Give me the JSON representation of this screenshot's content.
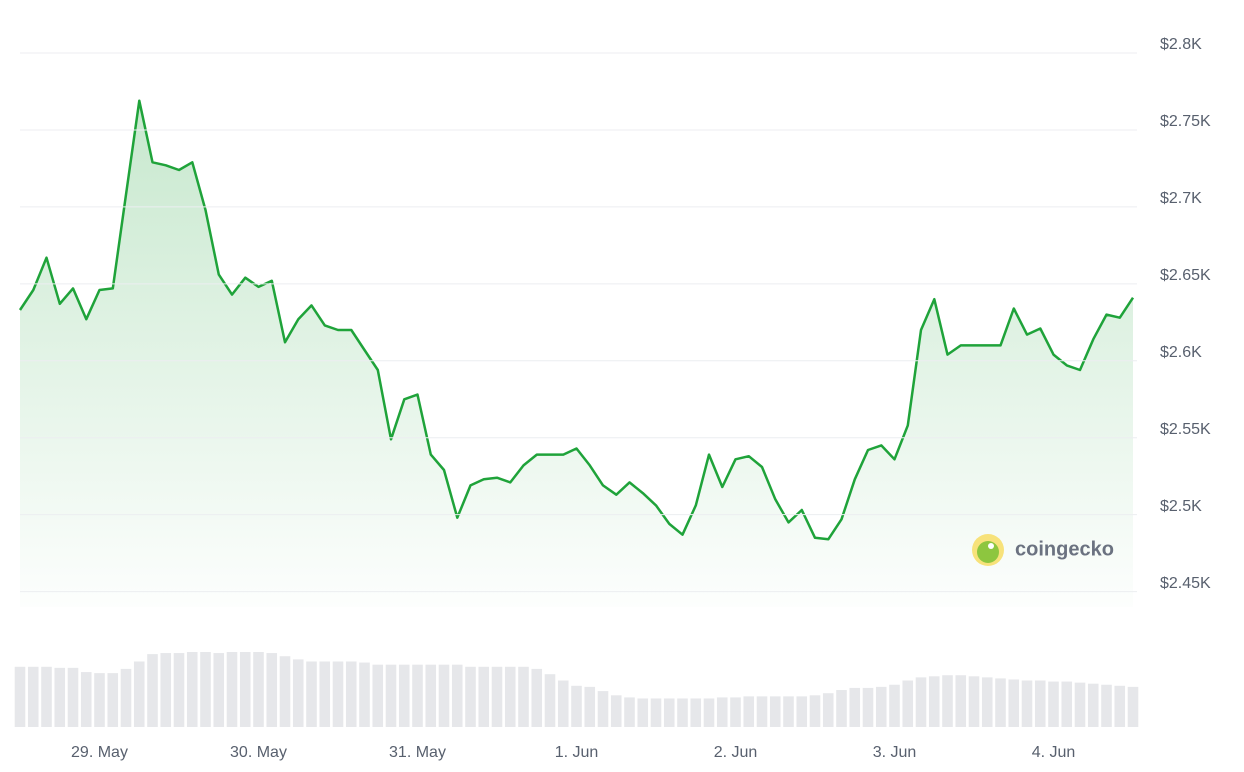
{
  "chart_data": {
    "type": "line",
    "color": "#1fa33a",
    "volume_color": "#e6e7ea",
    "watermark": "coingecko",
    "categories": [
      null,
      null,
      null,
      null,
      null,
      null,
      "29. May",
      null,
      null,
      null,
      null,
      null,
      null,
      null,
      null,
      null,
      null,
      null,
      "30. May",
      null,
      null,
      null,
      null,
      null,
      null,
      null,
      null,
      null,
      null,
      null,
      "31. May",
      null,
      null,
      null,
      null,
      null,
      null,
      null,
      null,
      null,
      null,
      null,
      "1. Jun",
      null,
      null,
      null,
      null,
      null,
      null,
      null,
      null,
      null,
      null,
      null,
      "2. Jun",
      null,
      null,
      null,
      null,
      null,
      null,
      null,
      null,
      null,
      null,
      null,
      "3. Jun",
      null,
      null,
      null,
      null,
      null,
      null,
      null,
      null,
      null,
      null,
      null,
      "4. Jun",
      null,
      null,
      null,
      null,
      null,
      null
    ],
    "values": [
      2633,
      2646,
      2667,
      2637,
      2647,
      2627,
      2646,
      2647,
      2708,
      2769,
      2729,
      2727,
      2724,
      2729,
      2698,
      2656,
      2643,
      2654,
      2648,
      2652,
      2612,
      2627,
      2636,
      2623,
      2620,
      2620,
      2607,
      2594,
      2549,
      2575,
      2578,
      2539,
      2529,
      2498,
      2519,
      2523,
      2524,
      2521,
      2532,
      2539,
      2539,
      2539,
      2543,
      2532,
      2519,
      2513,
      2521,
      2514,
      2506,
      2494,
      2487,
      2506,
      2539,
      2518,
      2536,
      2538,
      2531,
      2510,
      2495,
      2503,
      2485,
      2484,
      2497,
      2523,
      2542,
      2545,
      2536,
      2558,
      2620,
      2640,
      2604,
      2610,
      2610,
      2610,
      2610,
      2634,
      2617,
      2621,
      2604,
      2597,
      2594,
      2614,
      2630,
      2628,
      2641
    ],
    "volume": [
      57,
      57,
      57,
      56,
      56,
      52,
      51,
      51,
      55,
      62,
      69,
      70,
      70,
      71,
      71,
      70,
      71,
      71,
      71,
      70,
      67,
      64,
      62,
      62,
      62,
      62,
      61,
      59,
      59,
      59,
      59,
      59,
      59,
      59,
      57,
      57,
      57,
      57,
      57,
      55,
      50,
      44,
      39,
      38,
      34,
      30,
      28,
      27,
      27,
      27,
      27,
      27,
      27,
      28,
      28,
      29,
      29,
      29,
      29,
      29,
      30,
      32,
      35,
      37,
      37,
      38,
      40,
      44,
      47,
      48,
      49,
      49,
      48,
      47,
      46,
      45,
      44,
      44,
      43,
      43,
      42,
      41,
      40,
      39,
      38
    ],
    "ylim": [
      2440,
      2800
    ],
    "yticks": [
      {
        "value": 2450,
        "label": "$2.45K"
      },
      {
        "value": 2500,
        "label": "$2.5K"
      },
      {
        "value": 2550,
        "label": "$2.55K"
      },
      {
        "value": 2600,
        "label": "$2.6K"
      },
      {
        "value": 2650,
        "label": "$2.65K"
      },
      {
        "value": 2700,
        "label": "$2.7K"
      },
      {
        "value": 2750,
        "label": "$2.75K"
      },
      {
        "value": 2800,
        "label": "$2.8K"
      }
    ],
    "grid": true
  }
}
